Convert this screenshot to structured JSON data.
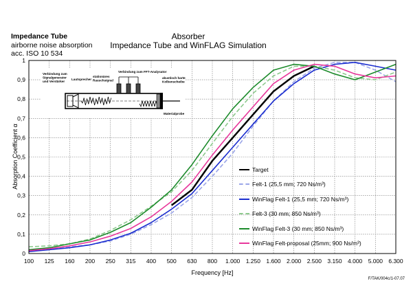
{
  "header": {
    "corner_title": "Impedance Tube",
    "corner_line1": "airborne noise absorption",
    "corner_line2": "acc. ISO 10 534",
    "footnote": "F/TAK/004c/1-07.07"
  },
  "schematic": {
    "label_signal": [
      "Verbindung zum",
      "Signalgenerator",
      "und Verstärker"
    ],
    "label_speaker": "Lautsprecher",
    "label_noise": [
      "stationäres",
      "Rauschsignal"
    ],
    "label_fft": "Verbindung zum FFT-Analysator",
    "label_piston": [
      "akustisch harte",
      "Kolbenscheibe"
    ],
    "label_sample": "Materialprobe"
  },
  "chart_data": {
    "type": "line",
    "title": "Absorber",
    "subtitle": "Impedance Tube and WinFLAG Simulation",
    "xlabel": "Frequency [Hz]",
    "ylabel": "Absorption Coefficient α",
    "ylim": [
      0,
      1
    ],
    "yticks": [
      "0",
      "0,1",
      "0,2",
      "0,3",
      "0,4",
      "0,5",
      "0,6",
      "0,7",
      "0,8",
      "0,9",
      "1"
    ],
    "grid": true,
    "legend_position": "lower-right",
    "categories": [
      "100",
      "125",
      "160",
      "200",
      "250",
      "315",
      "400",
      "500",
      "630",
      "800",
      "1.000",
      "1.250",
      "1.600",
      "2.000",
      "2.500",
      "3.150",
      "4.000",
      "5.000",
      "6.300"
    ],
    "series": [
      {
        "name": "Target",
        "color": "#000000",
        "dash": "",
        "width": 2.5,
        "values": [
          null,
          null,
          null,
          null,
          null,
          null,
          null,
          0.25,
          0.33,
          0.48,
          0.6,
          0.72,
          0.84,
          0.92,
          0.97,
          null,
          null,
          null,
          null
        ]
      },
      {
        "name": "Felt-1 (25,5 mm; 720 Ns/m³)",
        "color": "#9aa5e8",
        "dash": "6,3",
        "width": 1.6,
        "values": [
          0.02,
          0.025,
          0.035,
          0.045,
          0.065,
          0.1,
          0.15,
          0.21,
          0.29,
          0.4,
          0.52,
          0.66,
          0.79,
          0.89,
          0.96,
          0.99,
          0.99,
          0.95,
          0.89
        ]
      },
      {
        "name": "WinFlag Felt-1 (25,5 mm; 720 Ns/m³)",
        "color": "#1a2ccf",
        "dash": "",
        "width": 1.6,
        "values": [
          0.01,
          0.02,
          0.03,
          0.045,
          0.07,
          0.105,
          0.16,
          0.23,
          0.31,
          0.43,
          0.55,
          0.67,
          0.79,
          0.88,
          0.95,
          0.98,
          0.99,
          0.97,
          0.95
        ]
      },
      {
        "name": "Felt-3 (30 mm; 850 Ns/m³)",
        "color": "#8cc98c",
        "dash": "6,3",
        "width": 1.6,
        "values": [
          0.035,
          0.04,
          0.05,
          0.075,
          0.12,
          0.175,
          0.245,
          0.32,
          0.43,
          0.57,
          0.71,
          0.83,
          0.92,
          0.97,
          0.97,
          0.95,
          0.91,
          0.9,
          0.94
        ]
      },
      {
        "name": "WinFlag Felt-3 (30 mm; 850 Ns/m³)",
        "color": "#1b8a2a",
        "dash": "",
        "width": 1.6,
        "values": [
          0.02,
          0.03,
          0.05,
          0.07,
          0.11,
          0.16,
          0.24,
          0.33,
          0.46,
          0.61,
          0.75,
          0.86,
          0.95,
          0.98,
          0.97,
          0.93,
          0.9,
          0.94,
          0.98
        ]
      },
      {
        "name": "WinFlag Felt-proposal (25mm; 900 Ns/m³)",
        "color": "#e8379b",
        "dash": "",
        "width": 1.6,
        "values": [
          0.015,
          0.025,
          0.04,
          0.06,
          0.09,
          0.13,
          0.19,
          0.27,
          0.37,
          0.51,
          0.64,
          0.76,
          0.88,
          0.95,
          0.98,
          0.97,
          0.93,
          0.91,
          0.92
        ]
      }
    ]
  }
}
